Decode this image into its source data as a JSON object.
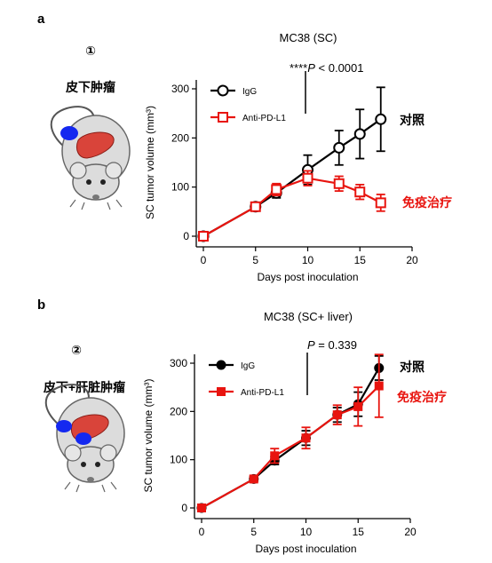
{
  "colors": {
    "black": "#000000",
    "red": "#e8140f",
    "mouse_body": "#dcdcdc",
    "liver": "#d9443a",
    "tumor": "#1428f0"
  },
  "icons": [
    "mouse-subcutaneous-tumor-icon",
    "mouse-subcutaneous-liver-tumor-icon"
  ],
  "panels": [
    {
      "letter": "a",
      "circled_number": "①",
      "model_label": "皮下肿瘤",
      "right_labels": {
        "igg": "对照",
        "treat": "免疫治疗"
      },
      "annotation": {
        "stars": "****",
        "p_text": "P",
        "rest": " < 0.0001"
      }
    },
    {
      "letter": "b",
      "circled_number": "②",
      "model_label": "皮下+肝脏肿瘤",
      "right_labels": {
        "igg": "对照",
        "treat": "免疫治疗"
      },
      "annotation": {
        "stars": "",
        "p_text": "P",
        "rest": " = 0.339"
      }
    }
  ],
  "chart_data": [
    {
      "type": "line",
      "title": "MC38 (SC)",
      "xlabel": "Days post inoculation",
      "ylabel": "SC tumor volume (mm³)",
      "xlim": [
        0,
        20
      ],
      "ylim": [
        0,
        300
      ],
      "xticks": [
        0,
        5,
        10,
        15,
        20
      ],
      "yticks": [
        0,
        100,
        200,
        300
      ],
      "legend": "top-left",
      "series": [
        {
          "name": "IgG",
          "color": "#000000",
          "marker": "open-circle",
          "x": [
            0,
            5,
            7,
            10,
            13,
            15,
            17
          ],
          "y": [
            0,
            60,
            88,
            135,
            180,
            208,
            238
          ],
          "err": [
            0,
            5,
            10,
            30,
            35,
            50,
            65
          ]
        },
        {
          "name": "Anti-PD-L1",
          "color": "#e8140f",
          "marker": "open-square",
          "x": [
            0,
            5,
            7,
            10,
            13,
            15,
            17
          ],
          "y": [
            0,
            60,
            95,
            118,
            107,
            90,
            68
          ],
          "err": [
            0,
            5,
            12,
            15,
            15,
            15,
            17
          ]
        }
      ]
    },
    {
      "type": "line",
      "title": "MC38 (SC+ liver)",
      "xlabel": "Days post inoculation",
      "ylabel": "SC tumor volume (mm³)",
      "xlim": [
        0,
        20
      ],
      "ylim": [
        0,
        300
      ],
      "xticks": [
        0,
        5,
        10,
        15,
        20
      ],
      "yticks": [
        0,
        100,
        200,
        300
      ],
      "legend": "top-left",
      "series": [
        {
          "name": "IgG",
          "color": "#000000",
          "marker": "filled-circle",
          "x": [
            0,
            5,
            7,
            10,
            13,
            15,
            17
          ],
          "y": [
            0,
            60,
            98,
            145,
            193,
            215,
            290
          ],
          "err": [
            0,
            5,
            8,
            15,
            15,
            25,
            25
          ]
        },
        {
          "name": "Anti-PD-L1",
          "color": "#e8140f",
          "marker": "filled-square",
          "x": [
            0,
            5,
            7,
            10,
            13,
            15,
            17
          ],
          "y": [
            0,
            60,
            108,
            145,
            193,
            210,
            253
          ],
          "err": [
            0,
            5,
            15,
            22,
            20,
            40,
            65
          ]
        }
      ]
    }
  ]
}
